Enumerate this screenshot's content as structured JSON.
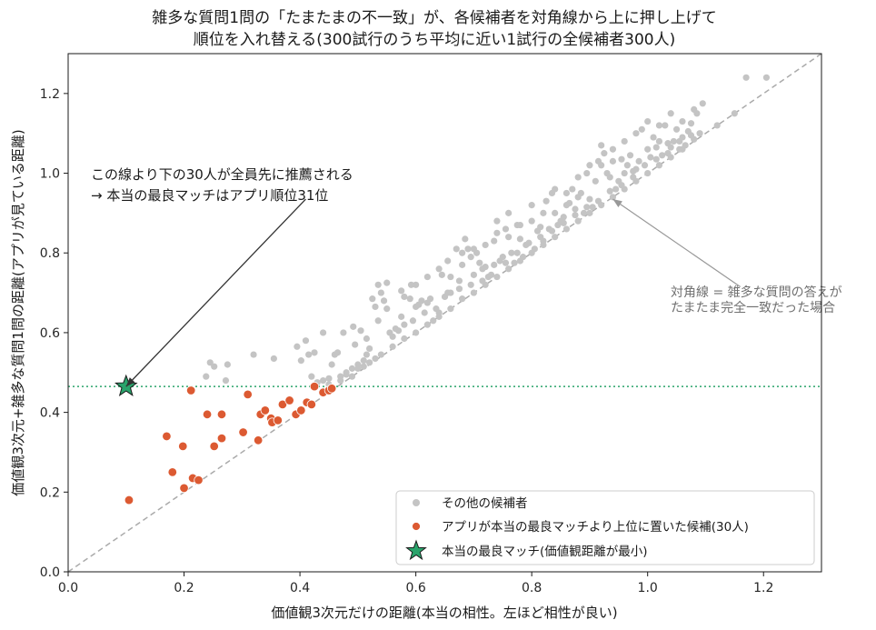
{
  "chart_data": {
    "type": "scatter",
    "title_line1": "雑多な質問1問の「たまたまの不一致」が、各候補者を対角線から上に押し上げて",
    "title_line2": "順位を入れ替える(300試行のうち平均に近い1試行の全候補者300人)",
    "xlabel": "価値観3次元だけの距離(本当の相性。左ほど相性が良い)",
    "ylabel": "価値観3次元+雑多な質問1問の距離(アプリが見ている距離)",
    "xlim": [
      0.0,
      1.3
    ],
    "ylim": [
      0.0,
      1.3
    ],
    "xticks": [
      "0.0",
      "0.2",
      "0.4",
      "0.6",
      "0.8",
      "1.0",
      "1.2"
    ],
    "yticks": [
      "0.0",
      "0.2",
      "0.4",
      "0.6",
      "0.8",
      "1.0",
      "1.2"
    ],
    "threshold_y": 0.465,
    "colors": {
      "others": "#c4c4c4",
      "above": "#dc5a32",
      "best": "#2aa36b",
      "diagonal": "#aaaaaa",
      "threshold": "#2aa36b"
    },
    "annotation_main": {
      "line1": "この線より下の30人が全員先に推薦される",
      "line2": "→ 本当の最良マッチはアプリ順位31位",
      "arrow_from": [
        0.41,
        0.935
      ],
      "arrow_to": [
        0.1,
        0.465
      ]
    },
    "annotation_diag": {
      "line1": "対角線 = 雑多な質問の答えが",
      "line2": "たまたま完全一致だった場合",
      "arrow_from": [
        1.16,
        0.715
      ],
      "arrow_to": [
        0.94,
        0.935
      ]
    },
    "legend": {
      "position": "lower-right",
      "entries": [
        {
          "label": "その他の候補者"
        },
        {
          "label": "アプリが本当の最良マッチより上位に置いた候補(30人)"
        },
        {
          "label": "本当の最良マッチ(価値観距離が最小)"
        }
      ]
    },
    "best_match": {
      "x": 0.1,
      "y": 0.465
    },
    "above_points": [
      [
        0.105,
        0.18
      ],
      [
        0.17,
        0.34
      ],
      [
        0.18,
        0.25
      ],
      [
        0.198,
        0.315
      ],
      [
        0.2,
        0.21
      ],
      [
        0.212,
        0.455
      ],
      [
        0.215,
        0.235
      ],
      [
        0.225,
        0.23
      ],
      [
        0.24,
        0.395
      ],
      [
        0.252,
        0.315
      ],
      [
        0.265,
        0.395
      ],
      [
        0.265,
        0.335
      ],
      [
        0.302,
        0.35
      ],
      [
        0.31,
        0.445
      ],
      [
        0.328,
        0.33
      ],
      [
        0.332,
        0.395
      ],
      [
        0.34,
        0.405
      ],
      [
        0.35,
        0.385
      ],
      [
        0.352,
        0.375
      ],
      [
        0.362,
        0.38
      ],
      [
        0.37,
        0.42
      ],
      [
        0.382,
        0.43
      ],
      [
        0.393,
        0.395
      ],
      [
        0.402,
        0.405
      ],
      [
        0.412,
        0.425
      ],
      [
        0.42,
        0.42
      ],
      [
        0.425,
        0.465
      ],
      [
        0.44,
        0.45
      ],
      [
        0.45,
        0.455
      ],
      [
        0.455,
        0.46
      ]
    ],
    "other_points": [
      [
        0.238,
        0.49
      ],
      [
        0.245,
        0.525
      ],
      [
        0.252,
        0.515
      ],
      [
        0.272,
        0.48
      ],
      [
        0.275,
        0.52
      ],
      [
        0.32,
        0.545
      ],
      [
        0.355,
        0.535
      ],
      [
        0.395,
        0.565
      ],
      [
        0.402,
        0.53
      ],
      [
        0.41,
        0.58
      ],
      [
        0.415,
        0.545
      ],
      [
        0.42,
        0.49
      ],
      [
        0.425,
        0.55
      ],
      [
        0.43,
        0.475
      ],
      [
        0.44,
        0.48
      ],
      [
        0.44,
        0.6
      ],
      [
        0.45,
        0.485
      ],
      [
        0.455,
        0.52
      ],
      [
        0.46,
        0.545
      ],
      [
        0.465,
        0.55
      ],
      [
        0.47,
        0.49
      ],
      [
        0.475,
        0.6
      ],
      [
        0.48,
        0.495
      ],
      [
        0.49,
        0.51
      ],
      [
        0.492,
        0.615
      ],
      [
        0.5,
        0.51
      ],
      [
        0.505,
        0.605
      ],
      [
        0.51,
        0.53
      ],
      [
        0.515,
        0.545
      ],
      [
        0.52,
        0.56
      ],
      [
        0.525,
        0.685
      ],
      [
        0.53,
        0.665
      ],
      [
        0.535,
        0.72
      ],
      [
        0.54,
        0.7
      ],
      [
        0.545,
        0.68
      ],
      [
        0.55,
        0.66
      ],
      [
        0.55,
        0.725
      ],
      [
        0.56,
        0.59
      ],
      [
        0.565,
        0.61
      ],
      [
        0.57,
        0.605
      ],
      [
        0.575,
        0.705
      ],
      [
        0.58,
        0.62
      ],
      [
        0.58,
        0.69
      ],
      [
        0.59,
        0.685
      ],
      [
        0.592,
        0.72
      ],
      [
        0.6,
        0.665
      ],
      [
        0.605,
        0.67
      ],
      [
        0.61,
        0.68
      ],
      [
        0.62,
        0.675
      ],
      [
        0.625,
        0.685
      ],
      [
        0.63,
        0.63
      ],
      [
        0.64,
        0.65
      ],
      [
        0.645,
        0.745
      ],
      [
        0.65,
        0.69
      ],
      [
        0.655,
        0.78
      ],
      [
        0.66,
        0.7
      ],
      [
        0.67,
        0.81
      ],
      [
        0.675,
        0.73
      ],
      [
        0.68,
        0.8
      ],
      [
        0.685,
        0.835
      ],
      [
        0.69,
        0.81
      ],
      [
        0.695,
        0.79
      ],
      [
        0.7,
        0.745
      ],
      [
        0.705,
        0.8
      ],
      [
        0.71,
        0.775
      ],
      [
        0.715,
        0.76
      ],
      [
        0.72,
        0.765
      ],
      [
        0.725,
        0.74
      ],
      [
        0.73,
        0.745
      ],
      [
        0.735,
        0.83
      ],
      [
        0.74,
        0.85
      ],
      [
        0.745,
        0.78
      ],
      [
        0.75,
        0.79
      ],
      [
        0.755,
        0.86
      ],
      [
        0.76,
        0.84
      ],
      [
        0.765,
        0.8
      ],
      [
        0.77,
        0.775
      ],
      [
        0.775,
        0.87
      ],
      [
        0.78,
        0.835
      ],
      [
        0.785,
        0.79
      ],
      [
        0.79,
        0.82
      ],
      [
        0.8,
        0.88
      ],
      [
        0.805,
        0.81
      ],
      [
        0.81,
        0.855
      ],
      [
        0.815,
        0.865
      ],
      [
        0.82,
        0.83
      ],
      [
        0.825,
        0.93
      ],
      [
        0.83,
        0.86
      ],
      [
        0.835,
        0.95
      ],
      [
        0.84,
        0.9
      ],
      [
        0.845,
        0.87
      ],
      [
        0.85,
        0.88
      ],
      [
        0.855,
        0.89
      ],
      [
        0.86,
        0.92
      ],
      [
        0.865,
        0.925
      ],
      [
        0.87,
        0.96
      ],
      [
        0.875,
        0.91
      ],
      [
        0.88,
        0.94
      ],
      [
        0.885,
        0.95
      ],
      [
        0.89,
        0.9
      ],
      [
        0.895,
        1.0
      ],
      [
        0.9,
        0.935
      ],
      [
        0.905,
        0.915
      ],
      [
        0.91,
        0.98
      ],
      [
        0.915,
        1.03
      ],
      [
        0.92,
        1.02
      ],
      [
        0.925,
        1.05
      ],
      [
        0.93,
        1.0
      ],
      [
        0.935,
        0.99
      ],
      [
        0.94,
        1.06
      ],
      [
        0.945,
        0.96
      ],
      [
        0.95,
        0.98
      ],
      [
        0.955,
        1.035
      ],
      [
        0.96,
        1.0
      ],
      [
        0.965,
        1.02
      ],
      [
        0.97,
        1.045
      ],
      [
        0.975,
        0.99
      ],
      [
        0.98,
        1.01
      ],
      [
        0.985,
        1.03
      ],
      [
        0.99,
        1.11
      ],
      [
        1.0,
        1.06
      ],
      [
        1.005,
        1.04
      ],
      [
        1.01,
        1.09
      ],
      [
        1.015,
        1.065
      ],
      [
        1.02,
        1.08
      ],
      [
        1.025,
        1.045
      ],
      [
        1.03,
        1.12
      ],
      [
        1.035,
        1.075
      ],
      [
        1.04,
        1.065
      ],
      [
        1.045,
        1.08
      ],
      [
        1.05,
        1.11
      ],
      [
        1.055,
        1.06
      ],
      [
        1.06,
        1.09
      ],
      [
        1.065,
        1.07
      ],
      [
        1.07,
        1.105
      ],
      [
        1.075,
        1.125
      ],
      [
        1.08,
        1.085
      ],
      [
        1.085,
        1.15
      ],
      [
        1.09,
        1.1
      ],
      [
        1.095,
        1.175
      ],
      [
        1.12,
        1.12
      ],
      [
        1.15,
        1.15
      ],
      [
        1.17,
        1.24
      ],
      [
        1.205,
        1.24
      ],
      [
        0.48,
        0.5
      ],
      [
        0.5,
        0.52
      ],
      [
        0.52,
        0.525
      ],
      [
        0.54,
        0.545
      ],
      [
        0.56,
        0.565
      ],
      [
        0.58,
        0.585
      ],
      [
        0.6,
        0.6
      ],
      [
        0.62,
        0.62
      ],
      [
        0.64,
        0.64
      ],
      [
        0.66,
        0.66
      ],
      [
        0.68,
        0.685
      ],
      [
        0.7,
        0.7
      ],
      [
        0.72,
        0.72
      ],
      [
        0.74,
        0.74
      ],
      [
        0.76,
        0.76
      ],
      [
        0.78,
        0.78
      ],
      [
        0.8,
        0.8
      ],
      [
        0.82,
        0.82
      ],
      [
        0.84,
        0.84
      ],
      [
        0.86,
        0.86
      ],
      [
        0.88,
        0.88
      ],
      [
        0.9,
        0.9
      ],
      [
        0.92,
        0.92
      ],
      [
        0.94,
        0.94
      ],
      [
        0.96,
        0.96
      ],
      [
        0.98,
        0.98
      ],
      [
        1.0,
        1.0
      ],
      [
        1.02,
        1.02
      ],
      [
        1.04,
        1.04
      ],
      [
        1.06,
        1.06
      ],
      [
        0.495,
        0.57
      ],
      [
        0.515,
        0.585
      ],
      [
        0.535,
        0.63
      ],
      [
        0.555,
        0.6
      ],
      [
        0.575,
        0.64
      ],
      [
        0.595,
        0.63
      ],
      [
        0.615,
        0.65
      ],
      [
        0.635,
        0.66
      ],
      [
        0.655,
        0.7
      ],
      [
        0.675,
        0.71
      ],
      [
        0.695,
        0.72
      ],
      [
        0.715,
        0.73
      ],
      [
        0.735,
        0.77
      ],
      [
        0.755,
        0.775
      ],
      [
        0.775,
        0.8
      ],
      [
        0.795,
        0.825
      ],
      [
        0.815,
        0.84
      ],
      [
        0.835,
        0.855
      ],
      [
        0.855,
        0.875
      ],
      [
        0.875,
        0.895
      ],
      [
        0.895,
        0.915
      ],
      [
        0.915,
        0.93
      ],
      [
        0.935,
        0.955
      ],
      [
        0.955,
        0.97
      ],
      [
        0.975,
        1.005
      ],
      [
        0.995,
        1.02
      ],
      [
        1.015,
        1.035
      ],
      [
        1.035,
        1.05
      ],
      [
        1.055,
        1.08
      ],
      [
        1.075,
        1.095
      ],
      [
        0.6,
        0.72
      ],
      [
        0.62,
        0.74
      ],
      [
        0.64,
        0.76
      ],
      [
        0.66,
        0.74
      ],
      [
        0.68,
        0.77
      ],
      [
        0.7,
        0.81
      ],
      [
        0.72,
        0.82
      ],
      [
        0.74,
        0.88
      ],
      [
        0.76,
        0.9
      ],
      [
        0.78,
        0.87
      ],
      [
        0.8,
        0.92
      ],
      [
        0.82,
        0.9
      ],
      [
        0.84,
        0.96
      ],
      [
        0.86,
        0.95
      ],
      [
        0.88,
        0.99
      ],
      [
        0.9,
        1.02
      ],
      [
        0.92,
        1.07
      ],
      [
        0.94,
        1.03
      ],
      [
        0.96,
        1.08
      ],
      [
        0.98,
        1.1
      ],
      [
        1.0,
        1.13
      ],
      [
        1.02,
        1.12
      ],
      [
        1.04,
        1.15
      ],
      [
        1.06,
        1.13
      ],
      [
        1.08,
        1.16
      ],
      [
        0.45,
        0.47
      ],
      [
        0.47,
        0.48
      ],
      [
        0.49,
        0.49
      ],
      [
        0.51,
        0.515
      ],
      [
        0.53,
        0.535
      ]
    ]
  }
}
